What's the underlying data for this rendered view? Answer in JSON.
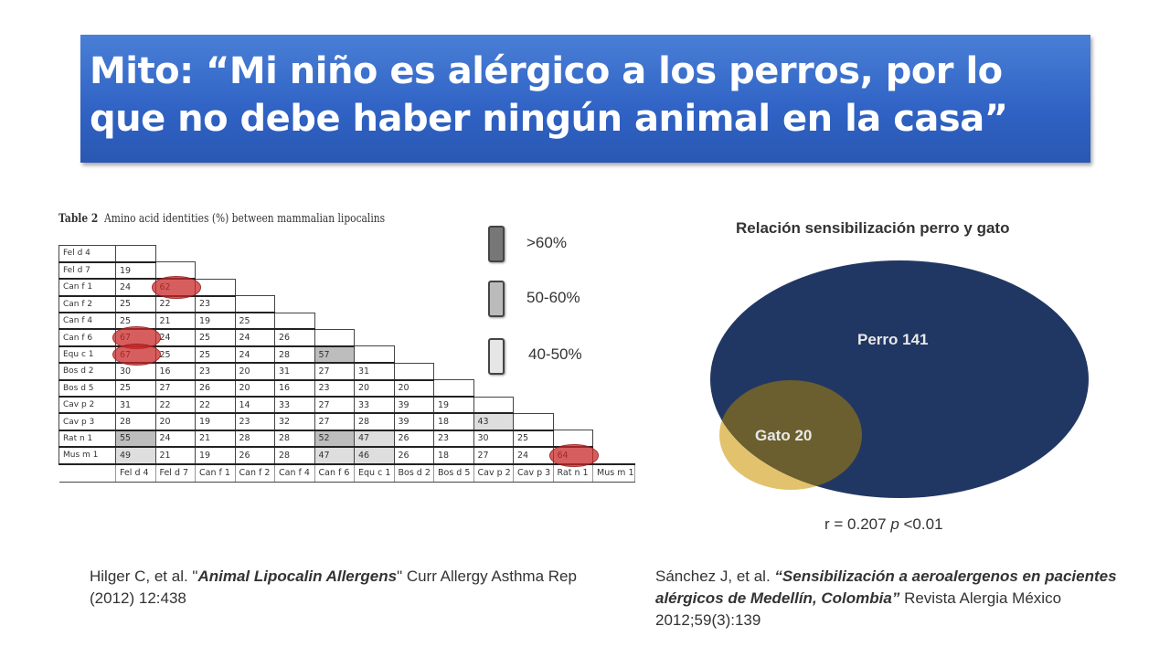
{
  "title": {
    "line1": "Mito: “Mi niño es alérgico a los perros, por lo",
    "line2": "que no debe haber ningún animal en la casa”"
  },
  "table": {
    "heading_bold": "Table 2",
    "heading_rest": "Amino acid identities (%) between mammalian lipocalins",
    "rows": [
      {
        "label": "Fel d 4",
        "values": []
      },
      {
        "label": "Fel d 7",
        "values": [
          "19"
        ]
      },
      {
        "label": "Can f 1",
        "values": [
          "24",
          "62"
        ]
      },
      {
        "label": "Can f 2",
        "values": [
          "25",
          "22",
          "23"
        ]
      },
      {
        "label": "Can f 4",
        "values": [
          "25",
          "21",
          "19",
          "25"
        ]
      },
      {
        "label": "Can f 6",
        "values": [
          "67",
          "24",
          "25",
          "24",
          "26"
        ]
      },
      {
        "label": "Equ c 1",
        "values": [
          "67",
          "25",
          "25",
          "24",
          "28",
          "57"
        ]
      },
      {
        "label": "Bos d 2",
        "values": [
          "30",
          "16",
          "23",
          "20",
          "31",
          "27",
          "31"
        ]
      },
      {
        "label": "Bos d 5",
        "values": [
          "25",
          "27",
          "26",
          "20",
          "16",
          "23",
          "20",
          "20"
        ]
      },
      {
        "label": "Cav p 2",
        "values": [
          "31",
          "22",
          "22",
          "14",
          "33",
          "27",
          "33",
          "39",
          "19"
        ]
      },
      {
        "label": "Cav p 3",
        "values": [
          "28",
          "20",
          "19",
          "23",
          "32",
          "27",
          "28",
          "39",
          "18",
          "43"
        ]
      },
      {
        "label": "Rat n 1",
        "values": [
          "55",
          "24",
          "21",
          "28",
          "28",
          "52",
          "47",
          "26",
          "23",
          "30",
          "25"
        ]
      },
      {
        "label": "Mus m 1",
        "values": [
          "49",
          "21",
          "19",
          "26",
          "28",
          "47",
          "46",
          "26",
          "18",
          "27",
          "24",
          "64"
        ]
      }
    ],
    "columns": [
      "Fel d 4",
      "Fel d 7",
      "Can f 1",
      "Can f 2",
      "Can f 4",
      "Can f 6",
      "Equ c 1",
      "Bos d 2",
      "Bos d 5",
      "Cav p 2",
      "Cav p 3",
      "Rat n 1",
      "Mus m 1"
    ]
  },
  "legend": {
    "items": [
      {
        "label": ">60%",
        "color": "#777777"
      },
      {
        "label": "50-60%",
        "color": "#bbbbbb"
      },
      {
        "label": "40-50%",
        "color": "#e6e6e6"
      }
    ]
  },
  "venn": {
    "title": "Relación sensibilización perro y gato",
    "big_label": "Perro 141",
    "small_label": "Gato 20",
    "big_color": "#213763",
    "small_color": "#e3c26e",
    "overlap_color": "#6b5f2f",
    "correlation_prefix": "r = 0.207 ",
    "correlation_p": "p",
    "correlation_suffix": " <0.01"
  },
  "citations": {
    "left_pre": "Hilger C, et al. \"",
    "left_title": "Animal Lipocalin Allergens",
    "left_post": "\" Curr Allergy Asthma Rep (2012) 12:438",
    "right_pre": "Sánchez J, et al. ",
    "right_title": "“Sensibilización a aeroalergenos en pacientes alérgicos de Medellín,  Colombia”",
    "right_post": " Revista Alergia México 2012;59(3):139"
  }
}
